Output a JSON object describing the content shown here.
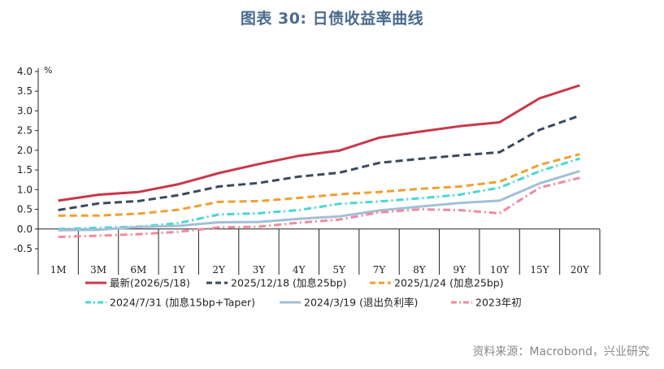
{
  "title": "图表 30: 日债收益率曲线",
  "source": "资料来源：Macrobond，兴业研究",
  "chart_data": {
    "type": "line",
    "unit": "%",
    "ylim": [
      -0.5,
      4.0
    ],
    "yticks": [
      "4.0",
      "3.5",
      "3.0",
      "2.5",
      "2.0",
      "1.5",
      "1.0",
      "0.5",
      "0.0",
      "-0.5"
    ],
    "categories": [
      "1M",
      "3M",
      "6M",
      "1Y",
      "2Y",
      "3Y",
      "4Y",
      "5Y",
      "7Y",
      "8Y",
      "9Y",
      "10Y",
      "15Y",
      "20Y"
    ],
    "legend_position": "bottom",
    "grid": false,
    "series": [
      {
        "name": "最新(2026/5/18)",
        "color": "#c8384b",
        "dash": "solid",
        "values": [
          0.72,
          0.87,
          0.94,
          1.14,
          1.42,
          1.65,
          1.86,
          1.99,
          2.32,
          2.47,
          2.61,
          2.71,
          3.32,
          3.65
        ]
      },
      {
        "name": "2025/12/18 (加息25bp)",
        "color": "#3a4a5e",
        "dash": "dash",
        "values": [
          0.48,
          0.65,
          0.71,
          0.86,
          1.08,
          1.17,
          1.33,
          1.43,
          1.68,
          1.78,
          1.87,
          1.95,
          2.52,
          2.88
        ]
      },
      {
        "name": "2025/1/24 (加息25bp)",
        "color": "#f0a030",
        "dash": "dash",
        "values": [
          0.34,
          0.34,
          0.39,
          0.49,
          0.69,
          0.71,
          0.79,
          0.88,
          0.94,
          1.02,
          1.08,
          1.2,
          1.63,
          1.9
        ]
      },
      {
        "name": "2024/7/31 (加息15bp+Taper)",
        "color": "#48d8d0",
        "dash": "dashdot",
        "values": [
          0.0,
          0.03,
          0.06,
          0.15,
          0.37,
          0.4,
          0.48,
          0.64,
          0.7,
          0.78,
          0.87,
          1.05,
          1.47,
          1.79
        ]
      },
      {
        "name": "2024/3/19 (退出负利率)",
        "color": "#a2bfd6",
        "dash": "solid",
        "values": [
          -0.03,
          -0.02,
          0.05,
          0.08,
          0.17,
          0.18,
          0.26,
          0.32,
          0.47,
          0.57,
          0.66,
          0.72,
          1.16,
          1.47
        ]
      },
      {
        "name": "2023年初",
        "color": "#f08aa0",
        "dash": "dashdot",
        "values": [
          -0.2,
          -0.17,
          -0.13,
          -0.07,
          0.04,
          0.06,
          0.16,
          0.24,
          0.42,
          0.5,
          0.48,
          0.4,
          1.05,
          1.3
        ]
      }
    ]
  }
}
